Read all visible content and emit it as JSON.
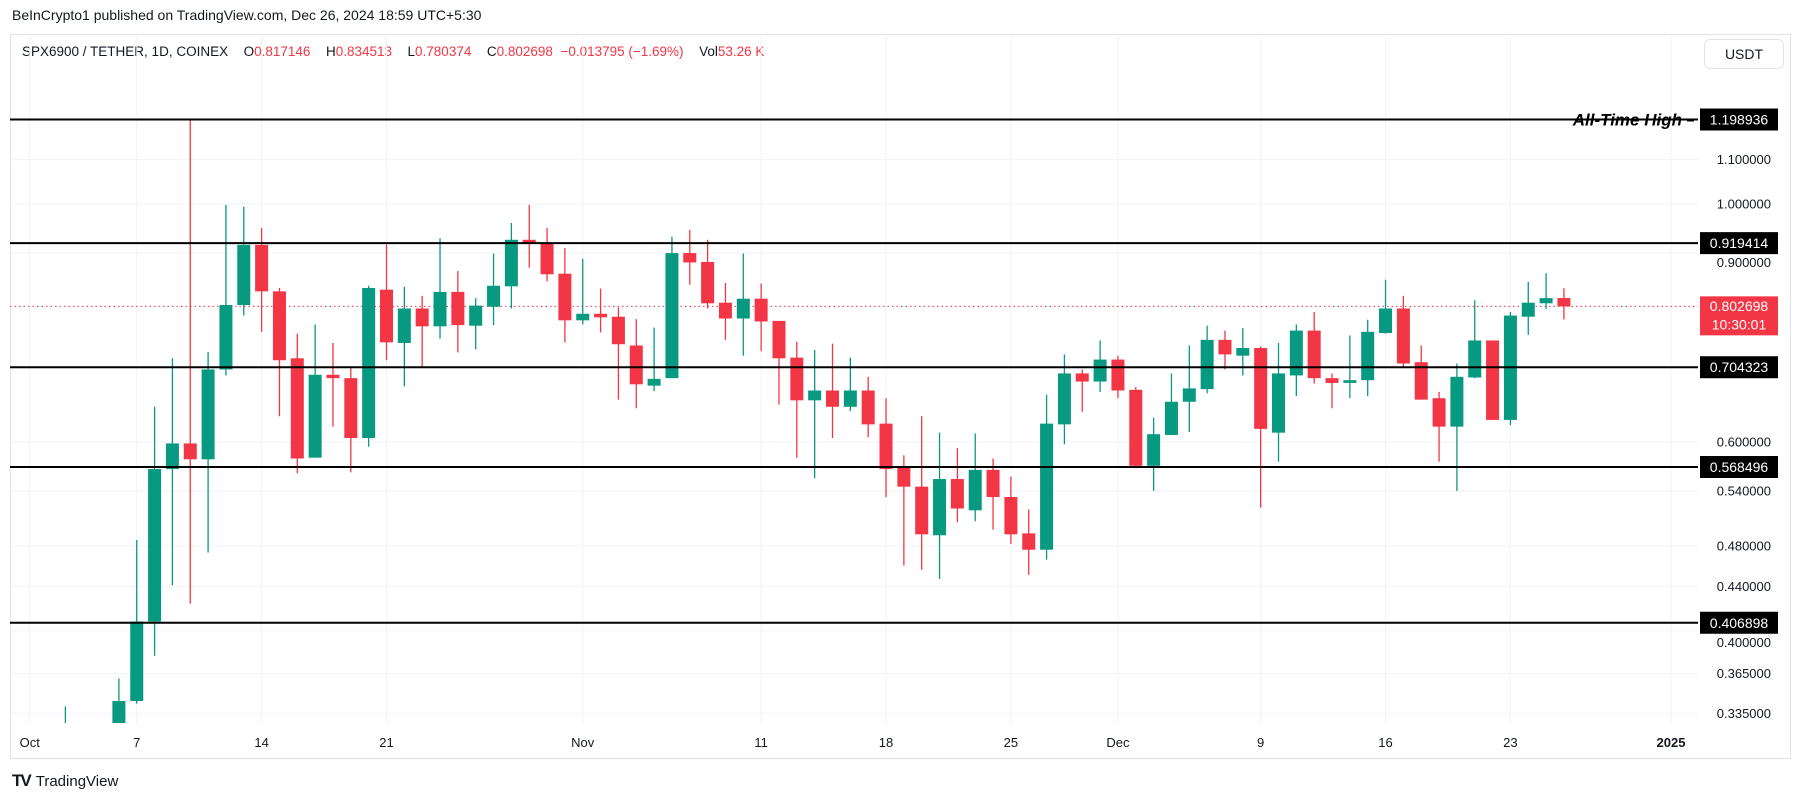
{
  "header": {
    "publish_line": "BeInCrypto1 published on TradingView.com, Dec 26, 2024 18:59 UTC+5:30"
  },
  "legend": {
    "symbol": "SPX6900 / TETHER, 1D, COINEX",
    "open_key": "O",
    "open": "0.817146",
    "high_key": "H",
    "high": "0.834513",
    "low_key": "L",
    "low": "0.780374",
    "close_key": "C",
    "close": "0.802698",
    "change": "−0.013795 (−1.69%)",
    "vol_key": "Vol",
    "vol": "53.26 K"
  },
  "currency_button": "USDT",
  "footer": {
    "logo_glyph": "TV",
    "brand": "TradingView"
  },
  "colors": {
    "up": "#089981",
    "down": "#f23645",
    "level_line": "#000000",
    "grid": "#f0f3fa"
  },
  "current_price": {
    "price": 0.802698,
    "label": "0.802698",
    "countdown": "10:30:01"
  },
  "annotation": {
    "text": "All-Time High",
    "price": 1.198936
  },
  "chart_data": {
    "type": "candlestick",
    "title": "",
    "y_scale": "log",
    "ylim": [
      0.32,
      1.32
    ],
    "xlim": [
      "2024-10-01",
      "2025-01-12"
    ],
    "grid": true,
    "y_ticks": [
      {
        "value": 1.1,
        "label": "1.100000"
      },
      {
        "value": 1.0,
        "label": "1.000000"
      },
      {
        "value": 0.9,
        "label": "0.900000"
      },
      {
        "value": 0.6,
        "label": "0.600000"
      },
      {
        "value": 0.54,
        "label": "0.540000"
      },
      {
        "value": 0.48,
        "label": "0.480000"
      },
      {
        "value": 0.44,
        "label": "0.440000"
      },
      {
        "value": 0.4,
        "label": "0.400000"
      },
      {
        "value": 0.365,
        "label": "0.365000"
      },
      {
        "value": 0.335,
        "label": "0.335000"
      }
    ],
    "x_ticks": [
      {
        "date": "2024-10-01",
        "label": "Oct"
      },
      {
        "date": "2024-10-07",
        "label": "7"
      },
      {
        "date": "2024-10-14",
        "label": "14"
      },
      {
        "date": "2024-10-21",
        "label": "21"
      },
      {
        "date": "2024-11-01",
        "label": "Nov"
      },
      {
        "date": "2024-11-11",
        "label": "11"
      },
      {
        "date": "2024-11-18",
        "label": "18"
      },
      {
        "date": "2024-11-25",
        "label": "25"
      },
      {
        "date": "2024-12-01",
        "label": "Dec"
      },
      {
        "date": "2024-12-09",
        "label": "9"
      },
      {
        "date": "2024-12-16",
        "label": "16"
      },
      {
        "date": "2024-12-23",
        "label": "23"
      },
      {
        "date": "2025-01-01",
        "label": "2025",
        "bold": true
      }
    ],
    "levels": [
      {
        "price": 1.198936,
        "label": "1.198936"
      },
      {
        "price": 0.919414,
        "label": "0.919414"
      },
      {
        "price": 0.704323,
        "label": "0.704323"
      },
      {
        "price": 0.568496,
        "label": "0.568496"
      },
      {
        "price": 0.406898,
        "label": "0.406898"
      }
    ],
    "candles_columns": [
      "date",
      "open",
      "high",
      "low",
      "close"
    ],
    "candles": [
      [
        "2024-10-03",
        null,
        0.34,
        null,
        null
      ],
      [
        "2024-10-06",
        null,
        0.361,
        null,
        0.344
      ],
      [
        "2024-10-07",
        0.344,
        0.486,
        0.342,
        0.408
      ],
      [
        "2024-10-08",
        0.408,
        0.647,
        0.379,
        0.566
      ],
      [
        "2024-10-09",
        0.566,
        0.718,
        0.441,
        0.598
      ],
      [
        "2024-10-10",
        0.598,
        1.199,
        0.424,
        0.578
      ],
      [
        "2024-10-11",
        0.578,
        0.728,
        0.473,
        0.701
      ],
      [
        "2024-10-12",
        0.701,
        0.998,
        0.692,
        0.805
      ],
      [
        "2024-10-13",
        0.805,
        0.994,
        0.787,
        0.916
      ],
      [
        "2024-10-14",
        0.916,
        0.95,
        0.76,
        0.829
      ],
      [
        "2024-10-15",
        0.829,
        0.835,
        0.634,
        0.715
      ],
      [
        "2024-10-16",
        0.718,
        0.757,
        0.561,
        0.579
      ],
      [
        "2024-10-17",
        0.58,
        0.772,
        0.58,
        0.693
      ],
      [
        "2024-10-18",
        0.693,
        0.742,
        0.62,
        0.688
      ],
      [
        "2024-10-19",
        0.688,
        0.705,
        0.562,
        0.605
      ],
      [
        "2024-10-20",
        0.605,
        0.839,
        0.594,
        0.835
      ],
      [
        "2024-10-21",
        0.832,
        0.917,
        0.715,
        0.743
      ],
      [
        "2024-10-22",
        0.742,
        0.837,
        0.676,
        0.799
      ],
      [
        "2024-10-23",
        0.799,
        0.821,
        0.705,
        0.769
      ],
      [
        "2024-10-24",
        0.769,
        0.929,
        0.749,
        0.828
      ],
      [
        "2024-10-25",
        0.828,
        0.866,
        0.727,
        0.771
      ],
      [
        "2024-10-26",
        0.77,
        0.817,
        0.732,
        0.804
      ],
      [
        "2024-10-27",
        0.802,
        0.899,
        0.771,
        0.839
      ],
      [
        "2024-10-28",
        0.838,
        0.96,
        0.799,
        0.926
      ],
      [
        "2024-10-29",
        0.926,
        0.998,
        0.872,
        0.919
      ],
      [
        "2024-10-30",
        0.919,
        0.95,
        0.847,
        0.86
      ],
      [
        "2024-10-31",
        0.861,
        0.91,
        0.743,
        0.779
      ],
      [
        "2024-11-01",
        0.779,
        0.889,
        0.772,
        0.79
      ],
      [
        "2024-11-02",
        0.79,
        0.834,
        0.759,
        0.784
      ],
      [
        "2024-11-03",
        0.785,
        0.801,
        0.657,
        0.74
      ],
      [
        "2024-11-04",
        0.738,
        0.781,
        0.645,
        0.679
      ],
      [
        "2024-11-05",
        0.677,
        0.767,
        0.669,
        0.687
      ],
      [
        "2024-11-06",
        0.688,
        0.932,
        0.688,
        0.9
      ],
      [
        "2024-11-07",
        0.9,
        0.946,
        0.841,
        0.882
      ],
      [
        "2024-11-08",
        0.883,
        0.926,
        0.799,
        0.808
      ],
      [
        "2024-11-09",
        0.809,
        0.844,
        0.747,
        0.782
      ],
      [
        "2024-11-10",
        0.782,
        0.899,
        0.722,
        0.816
      ],
      [
        "2024-11-11",
        0.816,
        0.843,
        0.729,
        0.777
      ],
      [
        "2024-11-12",
        0.778,
        0.778,
        0.65,
        0.718
      ],
      [
        "2024-11-13",
        0.719,
        0.744,
        0.58,
        0.656
      ],
      [
        "2024-11-14",
        0.656,
        0.731,
        0.555,
        0.67
      ],
      [
        "2024-11-15",
        0.67,
        0.741,
        0.605,
        0.647
      ],
      [
        "2024-11-16",
        0.647,
        0.719,
        0.641,
        0.67
      ],
      [
        "2024-11-17",
        0.67,
        0.69,
        0.606,
        0.623
      ],
      [
        "2024-11-18",
        0.624,
        0.659,
        0.533,
        0.566
      ],
      [
        "2024-11-19",
        0.569,
        0.583,
        0.46,
        0.545
      ],
      [
        "2024-11-20",
        0.545,
        0.634,
        0.456,
        0.492
      ],
      [
        "2024-11-21",
        0.491,
        0.612,
        0.447,
        0.554
      ],
      [
        "2024-11-22",
        0.554,
        0.592,
        0.505,
        0.52
      ],
      [
        "2024-11-23",
        0.518,
        0.611,
        0.506,
        0.565
      ],
      [
        "2024-11-24",
        0.565,
        0.579,
        0.497,
        0.533
      ],
      [
        "2024-11-25",
        0.533,
        0.557,
        0.482,
        0.492
      ],
      [
        "2024-11-26",
        0.493,
        0.519,
        0.451,
        0.476
      ],
      [
        "2024-11-27",
        0.476,
        0.664,
        0.466,
        0.624
      ],
      [
        "2024-11-28",
        0.623,
        0.724,
        0.597,
        0.695
      ],
      [
        "2024-11-29",
        0.695,
        0.701,
        0.64,
        0.683
      ],
      [
        "2024-11-30",
        0.683,
        0.746,
        0.668,
        0.716
      ],
      [
        "2024-12-01",
        0.716,
        0.722,
        0.659,
        0.67
      ],
      [
        "2024-12-02",
        0.671,
        0.675,
        0.567,
        0.57
      ],
      [
        "2024-12-03",
        0.57,
        0.632,
        0.54,
        0.61
      ],
      [
        "2024-12-04",
        0.609,
        0.695,
        0.609,
        0.654
      ],
      [
        "2024-12-05",
        0.654,
        0.738,
        0.613,
        0.673
      ],
      [
        "2024-12-06",
        0.672,
        0.77,
        0.666,
        0.747
      ],
      [
        "2024-12-07",
        0.747,
        0.762,
        0.701,
        0.724
      ],
      [
        "2024-12-08",
        0.722,
        0.766,
        0.692,
        0.734
      ],
      [
        "2024-12-09",
        0.734,
        0.736,
        0.521,
        0.617
      ],
      [
        "2024-12-10",
        0.612,
        0.742,
        0.575,
        0.695
      ],
      [
        "2024-12-11",
        0.692,
        0.772,
        0.662,
        0.762
      ],
      [
        "2024-12-12",
        0.762,
        0.793,
        0.68,
        0.688
      ],
      [
        "2024-12-13",
        0.688,
        0.695,
        0.645,
        0.681
      ],
      [
        "2024-12-14",
        0.681,
        0.754,
        0.659,
        0.685
      ],
      [
        "2024-12-15",
        0.685,
        0.78,
        0.662,
        0.76
      ],
      [
        "2024-12-16",
        0.758,
        0.85,
        0.757,
        0.799
      ],
      [
        "2024-12-17",
        0.799,
        0.821,
        0.705,
        0.71
      ],
      [
        "2024-12-18",
        0.712,
        0.738,
        0.657,
        0.657
      ],
      [
        "2024-12-19",
        0.659,
        0.668,
        0.575,
        0.62
      ],
      [
        "2024-12-20",
        0.62,
        0.71,
        0.54,
        0.69
      ],
      [
        "2024-12-21",
        0.689,
        0.813,
        0.688,
        0.746
      ],
      [
        "2024-12-22",
        0.746,
        0.746,
        0.629,
        0.629
      ],
      [
        "2024-12-23",
        0.629,
        0.793,
        0.622,
        0.787
      ],
      [
        "2024-12-24",
        0.785,
        0.846,
        0.755,
        0.809
      ],
      [
        "2024-12-25",
        0.808,
        0.862,
        0.798,
        0.817
      ],
      [
        "2024-12-26",
        0.817146,
        0.834513,
        0.780374,
        0.802698
      ]
    ]
  }
}
